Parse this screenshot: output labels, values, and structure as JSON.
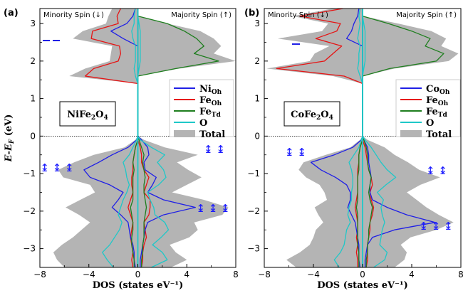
{
  "chart_data": [
    {
      "type": "area",
      "panel": "(a)",
      "compound": {
        "main": "NiFe",
        "sub1": "2",
        "mid": "O",
        "sub2": "4"
      },
      "spin_labels": {
        "minority": "Minority Spin (↓)",
        "majority": "Majority Spin (↑)"
      },
      "xlabel": "DOS (states eV⁻¹)",
      "ylabel_parts": {
        "e": "E",
        "dash": "-",
        "ef": "E",
        "ef_sub": "F",
        "unit": " (eV)"
      },
      "xlim": [
        -8,
        8
      ],
      "ylim": [
        -3.5,
        3.4
      ],
      "xticks": [
        -8,
        -4,
        0,
        4,
        8
      ],
      "yticks": [
        -3,
        -2,
        -1,
        0,
        1,
        2,
        3
      ],
      "arrow_labels": [
        "↨ ↨ ↨",
        "↨ ↨",
        "↨ ↨ ↨"
      ],
      "legend": [
        {
          "main": "Ni",
          "sub": "Oh"
        },
        {
          "main": "Fe",
          "sub": "Oh"
        },
        {
          "main": "Fe",
          "sub": "Td"
        },
        {
          "main": "O",
          "sub": ""
        },
        {
          "main": "Total",
          "sub": ""
        }
      ],
      "y": [
        -3.5,
        -3.3,
        -3.1,
        -2.9,
        -2.7,
        -2.5,
        -2.3,
        -2.1,
        -1.9,
        -1.7,
        -1.5,
        -1.3,
        -1.1,
        -0.9,
        -0.7,
        -0.5,
        -0.3,
        -0.1,
        0.0,
        1.4,
        1.6,
        1.8,
        2.0,
        2.2,
        2.4,
        2.6,
        2.8,
        3.0,
        3.2,
        3.4
      ],
      "series": [
        {
          "name": "Total",
          "minority": [
            6.0,
            6.6,
            6.9,
            6.2,
            5.3,
            4.6,
            3.9,
            4.8,
            5.9,
            4.7,
            3.5,
            3.9,
            6.1,
            6.5,
            5.2,
            3.6,
            1.1,
            0.2,
            0.0,
            0.0,
            5.6,
            4.3,
            2.3,
            2.2,
            2.1,
            5.3,
            4.5,
            2.6,
            2.4,
            2.1
          ],
          "majority": [
            2.7,
            4.0,
            3.1,
            2.6,
            4.2,
            4.9,
            4.6,
            6.9,
            7.4,
            5.4,
            2.8,
            4.0,
            5.2,
            4.1,
            3.2,
            4.9,
            2.2,
            0.5,
            0.0,
            0.0,
            0.0,
            3.4,
            8.0,
            6.2,
            6.8,
            6.2,
            5.1,
            2.4,
            0.0,
            0.0
          ]
        },
        {
          "name": "Fe_Oh",
          "minority": [
            0.4,
            0.5,
            0.4,
            0.5,
            0.6,
            0.5,
            0.4,
            0.6,
            0.8,
            0.6,
            0.4,
            0.5,
            0.5,
            0.4,
            0.4,
            0.3,
            0.2,
            0.0,
            0.0,
            0.0,
            4.3,
            3.6,
            1.6,
            1.4,
            1.5,
            3.8,
            3.7,
            1.6,
            1.7,
            1.4
          ],
          "majority": [
            0.3,
            0.4,
            0.4,
            0.5,
            0.7,
            0.6,
            0.5,
            0.9,
            1.0,
            1.0,
            0.5,
            0.7,
            0.9,
            0.5,
            0.3,
            0.3,
            0.2,
            0.0,
            0.0,
            0.0,
            0.0,
            0.0,
            0.0,
            0.0,
            0.0,
            0.0,
            0.0,
            0.0,
            0.0,
            0.0
          ]
        },
        {
          "name": "Ni_Oh",
          "minority": [
            0.2,
            0.3,
            0.3,
            0.4,
            0.6,
            0.7,
            0.8,
            1.4,
            2.1,
            1.6,
            1.2,
            2.3,
            3.9,
            4.4,
            3.2,
            2.1,
            0.8,
            0.1,
            0.0,
            0.0,
            0.0,
            0.0,
            0.0,
            0.0,
            0.0,
            1.2,
            2.2,
            0.9,
            0.4,
            0.2
          ],
          "majority": [
            0.2,
            0.2,
            0.3,
            0.4,
            0.5,
            0.6,
            0.8,
            2.1,
            4.7,
            2.1,
            0.8,
            1.2,
            1.5,
            0.6,
            0.5,
            0.9,
            0.8,
            0.3,
            0.0,
            0.0,
            0.0,
            0.0,
            0.0,
            0.0,
            0.0,
            0.0,
            0.0,
            0.0,
            0.0,
            0.0
          ]
        },
        {
          "name": "Fe_Td",
          "minority": [
            0.3,
            0.3,
            0.4,
            0.5,
            0.5,
            0.4,
            0.4,
            0.5,
            0.6,
            0.4,
            0.4,
            0.4,
            0.4,
            0.3,
            0.4,
            0.3,
            0.2,
            0.0,
            0.0,
            0.0,
            0.0,
            0.0,
            0.0,
            0.0,
            0.0,
            0.0,
            0.0,
            0.0,
            0.0,
            0.0
          ],
          "majority": [
            0.3,
            0.3,
            0.4,
            0.4,
            0.5,
            0.5,
            0.5,
            0.6,
            0.7,
            0.6,
            0.5,
            0.5,
            0.6,
            0.5,
            0.4,
            0.5,
            0.3,
            0.1,
            0.0,
            0.0,
            0.0,
            3.1,
            6.6,
            4.6,
            5.4,
            4.8,
            3.8,
            2.4,
            0.0,
            0.0
          ]
        },
        {
          "name": "O",
          "minority": [
            2.0,
            2.5,
            2.9,
            2.3,
            1.9,
            1.5,
            1.3,
            1.6,
            1.4,
            1.2,
            0.9,
            0.7,
            0.9,
            1.0,
            1.2,
            0.7,
            0.4,
            0.1,
            0.0,
            0.0,
            0.2,
            0.3,
            0.2,
            0.2,
            0.2,
            0.4,
            0.5,
            0.3,
            0.3,
            0.2
          ],
          "majority": [
            1.1,
            2.4,
            2.0,
            1.2,
            1.9,
            2.5,
            2.2,
            1.4,
            1.3,
            1.0,
            0.8,
            1.7,
            2.3,
            2.1,
            1.6,
            2.2,
            1.1,
            0.2,
            0.0,
            0.0,
            0.0,
            0.1,
            0.2,
            0.2,
            0.2,
            0.2,
            0.2,
            0.1,
            0.0,
            0.0
          ]
        }
      ]
    },
    {
      "type": "area",
      "panel": "(b)",
      "compound": {
        "main": "CoFe",
        "sub1": "2",
        "mid": "O",
        "sub2": "4"
      },
      "spin_labels": {
        "minority": "Minority Spin (↓)",
        "majority": "Majority Spin (↑)"
      },
      "xlabel": "DOS (states eV⁻¹)",
      "xlim": [
        -8,
        8
      ],
      "ylim": [
        -3.5,
        3.4
      ],
      "xticks": [
        -8,
        -4,
        0,
        4,
        8
      ],
      "yticks": [
        -3,
        -2,
        -1,
        0,
        1,
        2,
        3
      ],
      "arrow_labels": [
        "↨ ↨",
        "↨ ↨",
        "↨ ↨ ↨"
      ],
      "legend": [
        {
          "main": "Co",
          "sub": "Oh"
        },
        {
          "main": "Fe",
          "sub": "Oh"
        },
        {
          "main": "Fe",
          "sub": "Td"
        },
        {
          "main": "O",
          "sub": ""
        },
        {
          "main": "Total",
          "sub": ""
        }
      ],
      "y": [
        -3.5,
        -3.3,
        -3.1,
        -2.9,
        -2.7,
        -2.5,
        -2.3,
        -2.1,
        -1.9,
        -1.7,
        -1.5,
        -1.3,
        -1.1,
        -0.9,
        -0.7,
        -0.5,
        -0.3,
        -0.1,
        0.0,
        1.4,
        1.6,
        1.8,
        2.0,
        2.2,
        2.4,
        2.6,
        2.8,
        3.0,
        3.2,
        3.4
      ],
      "series": [
        {
          "name": "Total",
          "minority": [
            5.4,
            6.2,
            5.1,
            4.3,
            4.0,
            3.8,
            3.2,
            3.6,
            3.9,
            2.9,
            3.1,
            3.5,
            4.6,
            5.2,
            4.8,
            3.0,
            1.0,
            0.2,
            0.0,
            0.0,
            2.4,
            7.8,
            4.3,
            3.9,
            2.7,
            6.9,
            3.3,
            2.8,
            5.7,
            2.4
          ],
          "majority": [
            2.6,
            3.4,
            3.6,
            3.1,
            3.9,
            6.0,
            7.4,
            6.2,
            5.2,
            4.4,
            3.6,
            4.7,
            6.3,
            4.6,
            3.7,
            2.6,
            1.8,
            0.4,
            0.0,
            0.0,
            0.0,
            2.6,
            7.0,
            7.8,
            6.4,
            6.8,
            5.6,
            2.9,
            0.0,
            0.0
          ]
        },
        {
          "name": "Fe_Oh",
          "minority": [
            0.4,
            0.4,
            0.5,
            0.4,
            0.5,
            0.4,
            0.4,
            0.5,
            0.6,
            0.5,
            0.4,
            0.4,
            0.4,
            0.4,
            0.3,
            0.3,
            0.2,
            0.0,
            0.0,
            0.0,
            1.5,
            7.0,
            3.1,
            2.4,
            1.7,
            3.8,
            2.1,
            1.8,
            5.1,
            1.6
          ],
          "majority": [
            0.3,
            0.4,
            0.4,
            0.4,
            0.5,
            0.6,
            0.6,
            0.8,
            0.9,
            0.7,
            0.6,
            0.8,
            0.7,
            0.5,
            0.4,
            0.3,
            0.2,
            0.0,
            0.0,
            0.0,
            0.0,
            0.0,
            0.0,
            0.0,
            0.0,
            0.0,
            0.0,
            0.0,
            0.0,
            0.0
          ]
        },
        {
          "name": "Co_Oh",
          "minority": [
            0.2,
            0.3,
            0.3,
            0.3,
            0.4,
            0.5,
            0.6,
            0.9,
            1.2,
            1.0,
            1.0,
            1.3,
            2.2,
            3.4,
            4.2,
            2.3,
            0.8,
            0.1,
            0.0,
            0.0,
            0.0,
            0.0,
            0.0,
            0.0,
            0.0,
            1.3,
            0.9,
            0.7,
            0.4,
            0.3
          ],
          "majority": [
            0.2,
            0.2,
            0.3,
            0.4,
            0.8,
            2.6,
            5.9,
            3.6,
            2.0,
            0.8,
            0.6,
            0.6,
            0.7,
            0.6,
            0.5,
            0.5,
            0.4,
            0.1,
            0.0,
            0.0,
            0.0,
            0.0,
            0.0,
            0.0,
            0.0,
            0.0,
            0.0,
            0.0,
            0.0,
            0.0
          ]
        },
        {
          "name": "Fe_Td",
          "minority": [
            0.3,
            0.3,
            0.3,
            0.4,
            0.4,
            0.4,
            0.4,
            0.4,
            0.5,
            0.4,
            0.4,
            0.4,
            0.4,
            0.3,
            0.3,
            0.3,
            0.2,
            0.0,
            0.0,
            0.0,
            0.0,
            0.0,
            0.0,
            0.0,
            0.0,
            0.0,
            0.0,
            0.0,
            0.0,
            0.0
          ],
          "majority": [
            0.3,
            0.3,
            0.4,
            0.4,
            0.5,
            0.5,
            0.6,
            0.7,
            0.8,
            0.6,
            0.5,
            0.6,
            0.7,
            0.5,
            0.4,
            0.4,
            0.3,
            0.1,
            0.0,
            0.0,
            0.0,
            2.2,
            6.0,
            6.6,
            5.1,
            5.5,
            4.0,
            2.1,
            0.0,
            0.0
          ]
        },
        {
          "name": "O",
          "minority": [
            1.9,
            2.3,
            1.8,
            1.5,
            1.4,
            1.3,
            1.0,
            1.2,
            1.1,
            0.9,
            0.9,
            0.8,
            0.8,
            0.9,
            1.1,
            0.7,
            0.3,
            0.1,
            0.0,
            0.0,
            0.2,
            0.4,
            0.3,
            0.3,
            0.2,
            0.4,
            0.3,
            0.2,
            0.3,
            0.2
          ],
          "majority": [
            0.9,
            1.8,
            2.0,
            1.4,
            1.5,
            1.6,
            1.8,
            1.6,
            1.5,
            1.7,
            1.2,
            1.9,
            2.7,
            2.0,
            1.5,
            1.1,
            0.7,
            0.2,
            0.0,
            0.0,
            0.0,
            0.1,
            0.2,
            0.2,
            0.2,
            0.2,
            0.2,
            0.1,
            0.0,
            0.0
          ]
        }
      ]
    }
  ],
  "colors": {
    "Total": "#b4b4b4",
    "Ni_Oh": "#1f1fe6",
    "Co_Oh": "#1f1fe6",
    "Fe_Oh": "#e61414",
    "Fe_Td": "#1e7e1e",
    "O": "#1ec8c8",
    "zero_axis": "#1ec8c8",
    "arrows": "#1a1aff"
  }
}
